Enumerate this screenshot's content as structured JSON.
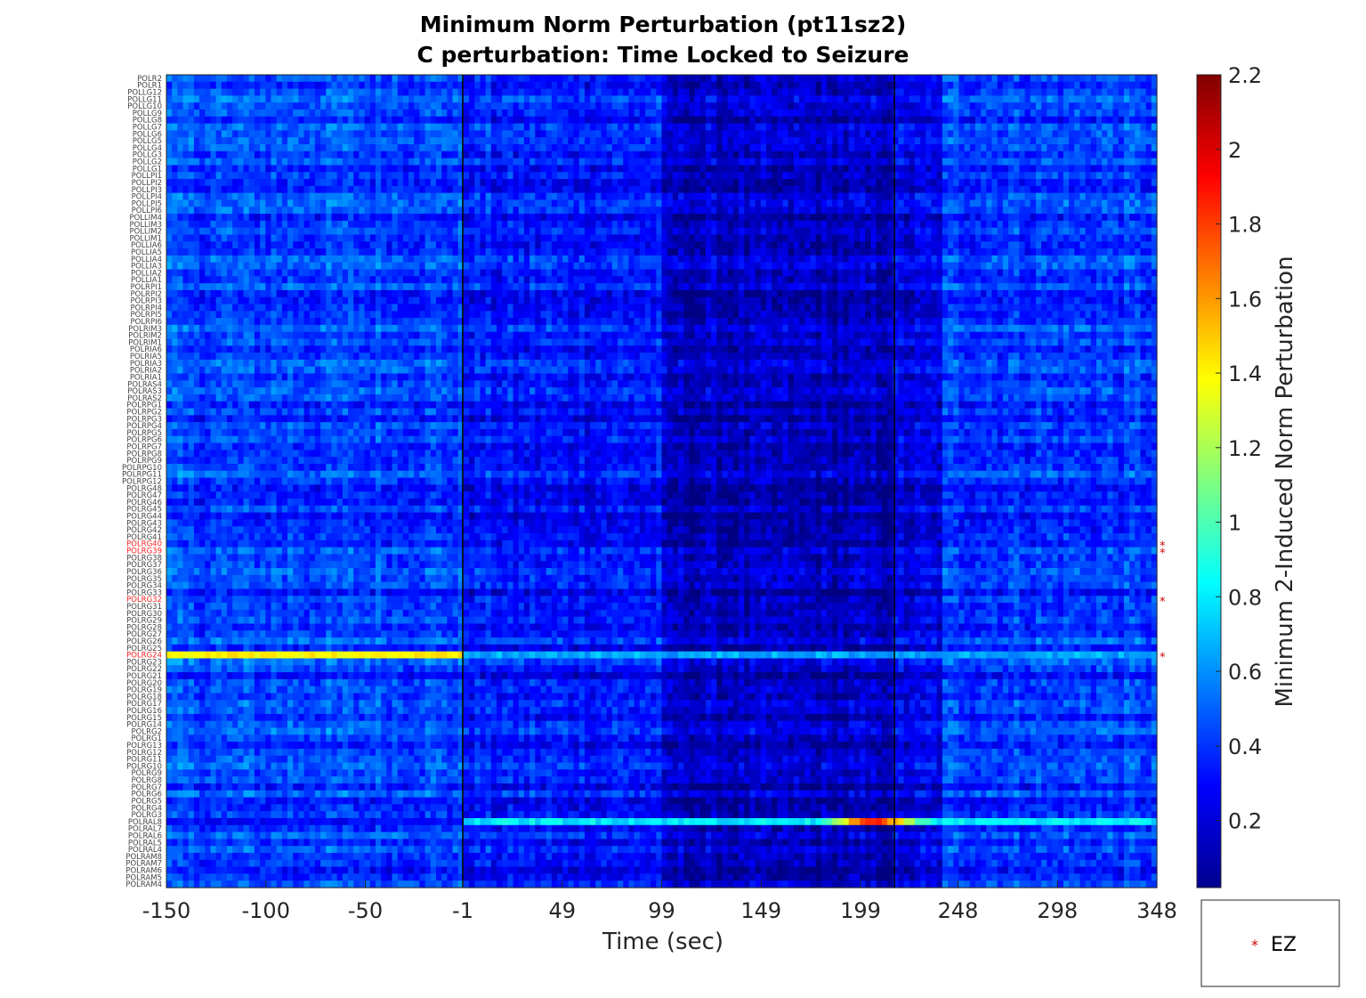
{
  "chart_data": {
    "type": "heatmap",
    "title": "Minimum Norm Perturbation (pt11sz2)",
    "subtitle": "C perturbation:  Time Locked to Seizure",
    "xlabel": "Time (sec)",
    "colorbar_label": "Minimum 2-Induced Norm Perturbation",
    "colormap": "jet",
    "color_range": [
      0.02,
      2.2
    ],
    "x_ticks": [
      "-150",
      "-100",
      "-50",
      "-1",
      "49",
      "99",
      "149",
      "199",
      "248",
      "298",
      "348"
    ],
    "x_range": [
      -150,
      348
    ],
    "colorbar_ticks": [
      "2.2",
      "2",
      "1.8",
      "1.6",
      "1.4",
      "1.2",
      "1",
      "0.8",
      "0.6",
      "0.4",
      "0.2"
    ],
    "event_lines": [
      -1,
      216
    ],
    "channels": [
      "POLR2",
      "POLR1",
      "POLLG12",
      "POLLG11",
      "POLLG10",
      "POLLG9",
      "POLLG8",
      "POLLG7",
      "POLLG6",
      "POLLG5",
      "POLLG4",
      "POLLG3",
      "POLLG2",
      "POLLG1",
      "POLLPI1",
      "POLLPI2",
      "POLLPI3",
      "POLLPI4",
      "POLLPI5",
      "POLLPI6",
      "POLLIM4",
      "POLLIM3",
      "POLLIM2",
      "POLLIM1",
      "POLLIA6",
      "POLLIA5",
      "POLLIA4",
      "POLLIA3",
      "POLLIA2",
      "POLLIA1",
      "POLRPI1",
      "POLRPI2",
      "POLRPI3",
      "POLRPI4",
      "POLRPI5",
      "POLRPI6",
      "POLRIM3",
      "POLRIM2",
      "POLRIM1",
      "POLRIA6",
      "POLRIA5",
      "POLRIA3",
      "POLRIA2",
      "POLRIA1",
      "POLRAS4",
      "POLRAS3",
      "POLRAS2",
      "POLRPG1",
      "POLRPG2",
      "POLRPG3",
      "POLRPG4",
      "POLRPG5",
      "POLRPG6",
      "POLRPG7",
      "POLRPG8",
      "POLRPG9",
      "POLRPG10",
      "POLRPG11",
      "POLRPG12",
      "POLRG48",
      "POLRG47",
      "POLRG46",
      "POLRG45",
      "POLRG44",
      "POLRG43",
      "POLRG42",
      "POLRG41",
      "POLRG40",
      "POLRG39",
      "POLRG38",
      "POLRG37",
      "POLRG36",
      "POLRG35",
      "POLRG34",
      "POLRG33",
      "POLRG32",
      "POLRG31",
      "POLRG30",
      "POLRG29",
      "POLRG28",
      "POLRG27",
      "POLRG26",
      "POLRG25",
      "POLRG24",
      "POLRG23",
      "POLRG22",
      "POLRG21",
      "POLRG20",
      "POLRG19",
      "POLRG18",
      "POLRG17",
      "POLRG16",
      "POLRG15",
      "POLRG14",
      "POLRG2",
      "POLRG1",
      "POLRG13",
      "POLRG12",
      "POLRG11",
      "POLRG10",
      "POLRG9",
      "POLRG8",
      "POLRG7",
      "POLRG6",
      "POLRG5",
      "POLRG4",
      "POLRG3",
      "POLRAL8",
      "POLRAL7",
      "POLRAL6",
      "POLRAL5",
      "POLRAL4",
      "POLRAM8",
      "POLRAM7",
      "POLRAM6",
      "POLRAM5",
      "POLRAM4"
    ],
    "ez_channels": [
      "POLRG40",
      "POLRG39",
      "POLRG32",
      "POLRG24"
    ],
    "notable_rows": {
      "POLRG24": {
        "pre_seizure_level": 1.4,
        "post_seizure_level": 0.65
      },
      "POLRAL8": {
        "pre_seizure_level": 0.3,
        "post_seizure_level": 0.8,
        "peak_level": 1.9,
        "peak_time": 205
      }
    },
    "legend": {
      "marker": "*",
      "marker_color": "#cc0000",
      "label": "EZ"
    }
  }
}
